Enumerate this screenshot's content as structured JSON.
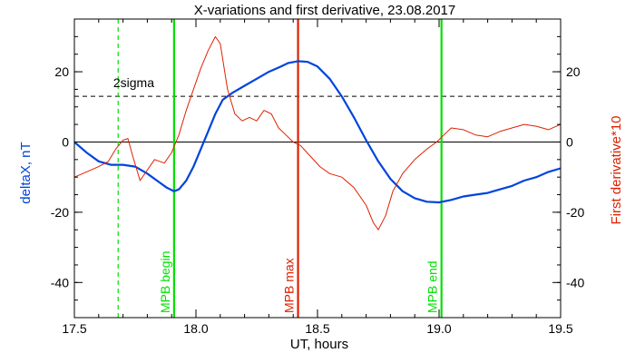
{
  "chart_data": {
    "type": "line",
    "title": "X-variations and first derivative, 23.08.2017",
    "xlabel": "UT, hours",
    "ylabel_left": "deltaX, nT",
    "ylabel_right": "First derivative*10",
    "xlim": [
      17.5,
      19.5
    ],
    "ylim": [
      -50,
      35
    ],
    "x_ticks": [
      "17.5",
      "18.0",
      "18.5",
      "19.0",
      "19.5"
    ],
    "x_tick_values": [
      17.5,
      18.0,
      18.5,
      19.0,
      19.5
    ],
    "y_ticks": [
      "-40",
      "-20",
      "0",
      "20"
    ],
    "y_tick_values": [
      -40,
      -20,
      0,
      20
    ],
    "threshold": {
      "label": "2sigma",
      "value": 13
    },
    "zero_line": 0,
    "vertical_markers": [
      {
        "label": "",
        "x": 17.68,
        "color": "#00e000",
        "style": "dashed"
      },
      {
        "label": "MPB begin",
        "x": 17.91,
        "color": "#00e000",
        "style": "solid"
      },
      {
        "label": "MPB max",
        "x": 18.42,
        "color": "#e02000",
        "style": "solid"
      },
      {
        "label": "MPB end",
        "x": 19.01,
        "color": "#00e000",
        "style": "solid"
      }
    ],
    "series": [
      {
        "name": "deltaX",
        "color": "#0044dd",
        "x": [
          17.5,
          17.55,
          17.6,
          17.65,
          17.7,
          17.75,
          17.8,
          17.85,
          17.88,
          17.91,
          17.93,
          17.96,
          17.99,
          18.02,
          18.05,
          18.08,
          18.11,
          18.15,
          18.2,
          18.25,
          18.3,
          18.35,
          18.38,
          18.42,
          18.46,
          18.5,
          18.55,
          18.6,
          18.65,
          18.7,
          18.75,
          18.8,
          18.85,
          18.9,
          18.95,
          19.0,
          19.05,
          19.1,
          19.15,
          19.2,
          19.25,
          19.3,
          19.35,
          19.4,
          19.45,
          19.5
        ],
        "values": [
          0,
          -3,
          -5.5,
          -6.5,
          -6.5,
          -7,
          -9,
          -11.5,
          -13,
          -14,
          -13.5,
          -11,
          -7,
          -2,
          3,
          8,
          12,
          14,
          16,
          18,
          20,
          21.5,
          22.5,
          23,
          22.8,
          21.5,
          18,
          13,
          7,
          0.5,
          -5.5,
          -10.5,
          -14,
          -16,
          -17,
          -17.2,
          -16.5,
          -15.5,
          -15,
          -14.5,
          -13.5,
          -12.5,
          -11,
          -10,
          -8.5,
          -7.5
        ]
      },
      {
        "name": "First derivative*10",
        "color": "#dd2200",
        "x": [
          17.5,
          17.55,
          17.6,
          17.64,
          17.67,
          17.7,
          17.72,
          17.74,
          17.77,
          17.8,
          17.83,
          17.87,
          17.9,
          17.93,
          17.96,
          17.99,
          18.02,
          18.05,
          18.08,
          18.1,
          18.13,
          18.16,
          18.19,
          18.22,
          18.25,
          18.28,
          18.31,
          18.34,
          18.37,
          18.4,
          18.43,
          18.47,
          18.51,
          18.55,
          18.6,
          18.65,
          18.7,
          18.73,
          18.75,
          18.78,
          18.81,
          18.85,
          18.9,
          18.95,
          18.99,
          19.02,
          19.05,
          19.1,
          19.15,
          19.2,
          19.25,
          19.3,
          19.35,
          19.4,
          19.45,
          19.5
        ],
        "values": [
          -10,
          -8.5,
          -7,
          -5.5,
          -2,
          0.5,
          1,
          -4,
          -11,
          -8,
          -5,
          -6,
          -3,
          2,
          9,
          15,
          21,
          26,
          30,
          28,
          15,
          8,
          6,
          7,
          6,
          9,
          8,
          4,
          2,
          0,
          -1,
          -4,
          -7,
          -9,
          -10,
          -13,
          -18,
          -23,
          -25,
          -21,
          -14,
          -9,
          -5,
          -2,
          0,
          2,
          4,
          3.5,
          2,
          1.5,
          3,
          4,
          5,
          4.5,
          3.5,
          5
        ]
      }
    ]
  }
}
